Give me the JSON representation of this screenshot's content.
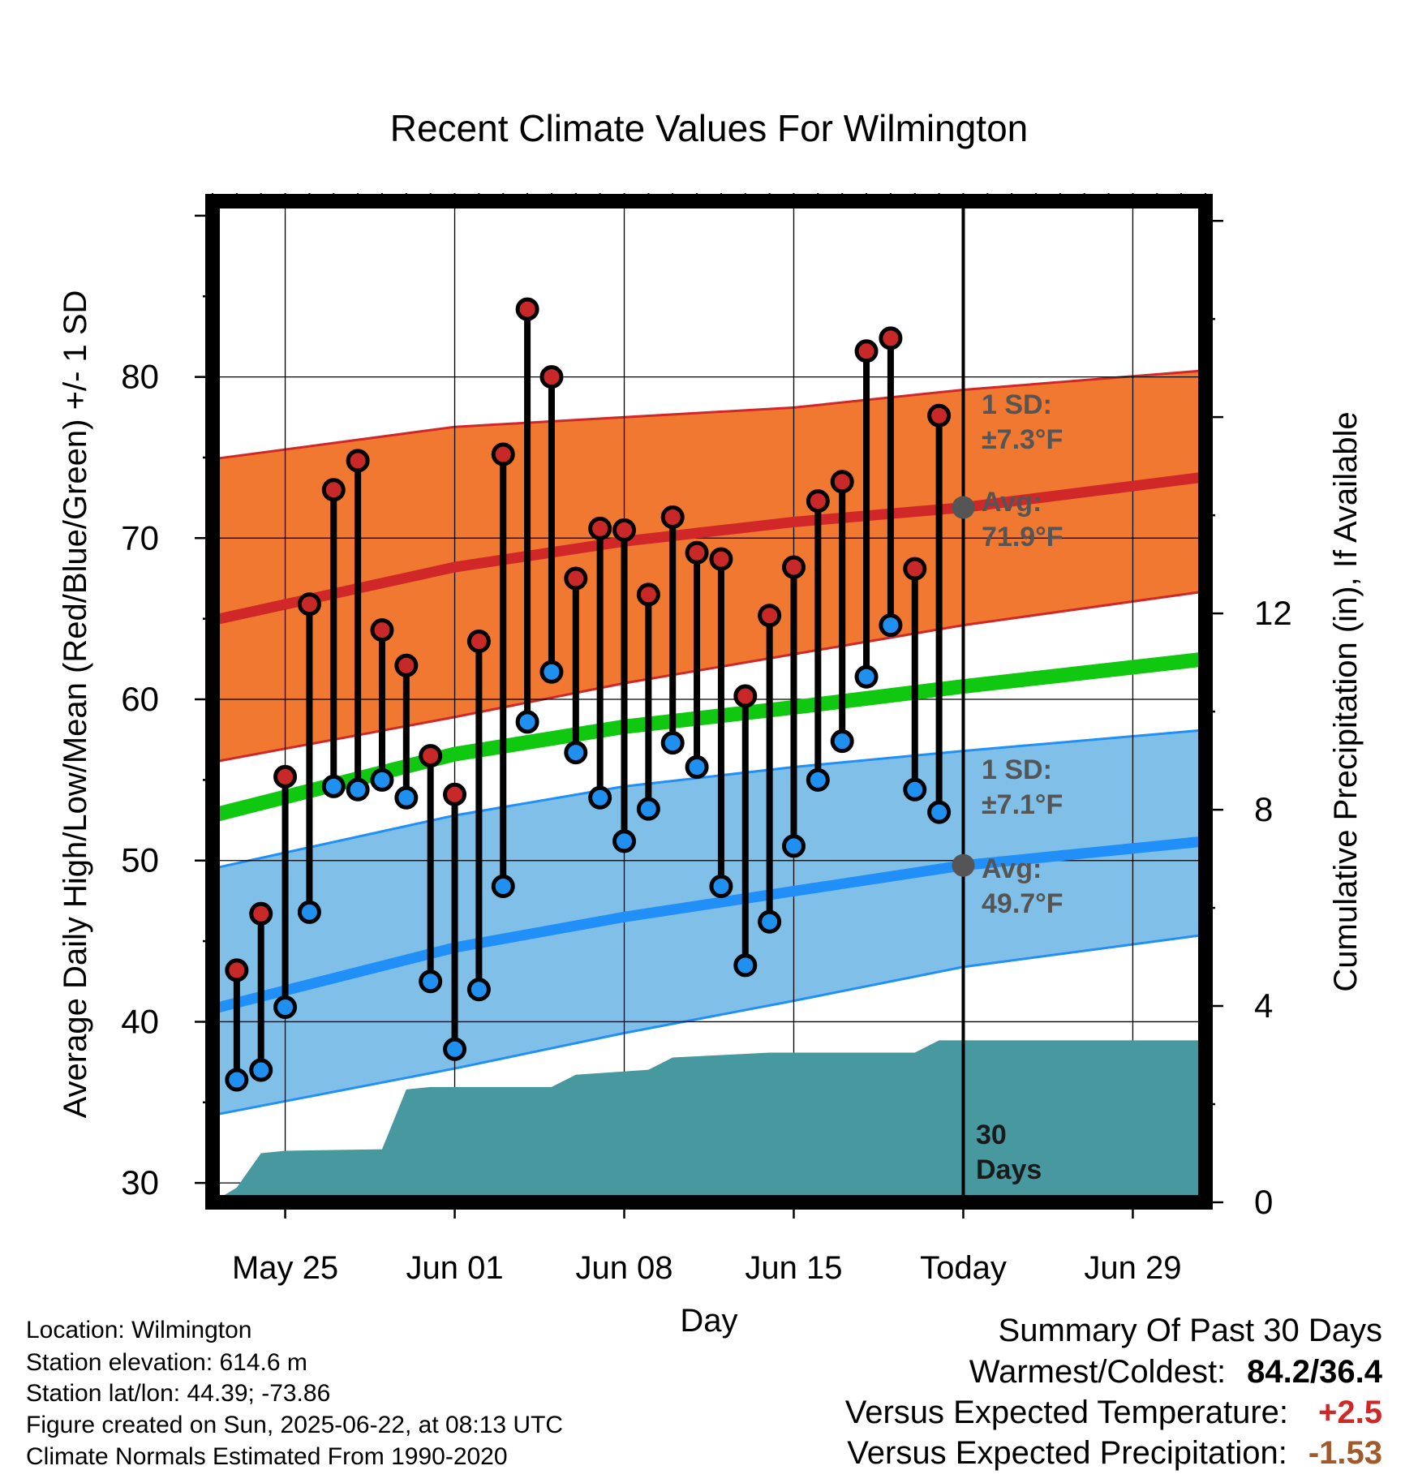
{
  "chart_data": {
    "type": "line",
    "title": "Recent Climate Values For Wilmington",
    "xlabel": "Day",
    "ylabel": "Average Daily High/Low/Mean (Red/Blue/Green) +/- 1 SD",
    "ylabel_right": "Cumulative Precipitation (in), If Available",
    "x_ticks": [
      "May 25",
      "Jun 01",
      "Jun 08",
      "Jun 15",
      "Today",
      "Jun 29"
    ],
    "y_ticks": [
      "30",
      "40",
      "50",
      "60",
      "70",
      "80"
    ],
    "y_right_ticks": [
      "0",
      "4",
      "8",
      "12"
    ],
    "ylim": [
      28.8,
      90.9
    ],
    "ylim_right": [
      0,
      20.4
    ],
    "xlim": [
      "May 22",
      "Jul 02"
    ],
    "grid": true,
    "today": "Jun 22",
    "dates": [
      "May 23",
      "May 24",
      "May 25",
      "May 26",
      "May 27",
      "May 28",
      "May 29",
      "May 30",
      "May 31",
      "Jun 01",
      "Jun 02",
      "Jun 03",
      "Jun 04",
      "Jun 05",
      "Jun 06",
      "Jun 07",
      "Jun 08",
      "Jun 09",
      "Jun 10",
      "Jun 11",
      "Jun 12",
      "Jun 13",
      "Jun 14",
      "Jun 15",
      "Jun 16",
      "Jun 17",
      "Jun 18",
      "Jun 19",
      "Jun 20",
      "Jun 21"
    ],
    "series": [
      {
        "name": "High",
        "values": [
          43.2,
          46.7,
          55.2,
          65.9,
          73.0,
          74.8,
          64.3,
          62.1,
          56.5,
          54.1,
          63.6,
          75.2,
          84.2,
          80.0,
          67.5,
          70.6,
          70.5,
          66.5,
          71.3,
          69.1,
          68.7,
          60.2,
          65.2,
          68.2,
          72.3,
          73.5,
          81.6,
          82.4,
          68.1,
          77.6
        ]
      },
      {
        "name": "Low",
        "values": [
          36.4,
          37.0,
          40.9,
          46.8,
          54.6,
          54.4,
          55.0,
          53.9,
          42.5,
          38.3,
          42.0,
          48.4,
          58.6,
          61.7,
          56.7,
          53.9,
          51.2,
          53.2,
          57.3,
          55.8,
          48.4,
          43.5,
          46.2,
          50.9,
          55.0,
          57.4,
          61.4,
          64.6,
          54.4,
          53.0
        ]
      }
    ],
    "normals": {
      "dates": [
        "May 22",
        "Jun 01",
        "Jun 08",
        "Jun 15",
        "Jun 22",
        "Jul 02"
      ],
      "high_avg": [
        64.9,
        68.2,
        69.8,
        71.0,
        71.9,
        73.8
      ],
      "high_upper": [
        74.9,
        76.9,
        77.5,
        78.1,
        79.2,
        80.4
      ],
      "high_lower": [
        56.1,
        58.9,
        61.0,
        62.8,
        64.6,
        66.7
      ],
      "mean": [
        52.8,
        56.6,
        58.3,
        59.5,
        60.8,
        62.5
      ],
      "low_avg": [
        40.8,
        44.6,
        46.5,
        48.1,
        49.7,
        51.2
      ],
      "low_upper": [
        49.5,
        52.8,
        54.6,
        55.8,
        56.8,
        58.1
      ],
      "low_lower": [
        34.2,
        37.1,
        39.3,
        41.3,
        43.4,
        45.4
      ]
    },
    "precipitation": {
      "dates": [
        "May 22",
        "May 23",
        "May 24",
        "May 25",
        "May 29",
        "May 30",
        "May 31",
        "Jun 05",
        "Jun 06",
        "Jun 09",
        "Jun 10",
        "Jun 12",
        "Jun 14",
        "Jun 20",
        "Jun 21",
        "Jul 02"
      ],
      "values": [
        0.0,
        0.3,
        1.0,
        1.05,
        1.08,
        2.3,
        2.35,
        2.35,
        2.6,
        2.7,
        2.95,
        3.0,
        3.05,
        3.05,
        3.3,
        3.3
      ]
    },
    "annotations": {
      "high_sd": "1 SD:",
      "high_sd_value": "±7.3°F",
      "high_avg_label": "Avg:",
      "high_avg_value": "71.9°F",
      "low_sd": "1 SD:",
      "low_sd_value": "±7.1°F",
      "low_avg_label": "Avg:",
      "low_avg_value": "49.7°F",
      "window_count": "30",
      "window_unit": "Days"
    },
    "colors": {
      "high_band": "#f07830",
      "high_line": "#d02828",
      "low_band": "#80c0e8",
      "low_line": "#2090f8",
      "mean_line": "#10c810",
      "precip": "#4898a0",
      "high_dot": "#c82828",
      "low_dot": "#2090f0",
      "annotation": "#555555"
    }
  },
  "footer": {
    "location": "Location: Wilmington",
    "elevation": "Station elevation: 614.6 m",
    "latlon": "Station lat/lon: 44.39; -73.86",
    "created": "Figure created on Sun, 2025-06-22, at 08:13 UTC",
    "normals": "Climate Normals Estimated From 1990-2020"
  },
  "summary": {
    "title": "Summary Of Past 30 Days",
    "warm_cold_label": "Warmest/Coldest:",
    "warm_cold_value": "84.2/36.4",
    "temp_label": "Versus Expected Temperature:",
    "temp_value": "+2.5",
    "temp_color": "#d02828",
    "precip_label": "Versus Expected Precipitation:",
    "precip_value": "-1.53",
    "precip_color": "#a05a2c"
  }
}
